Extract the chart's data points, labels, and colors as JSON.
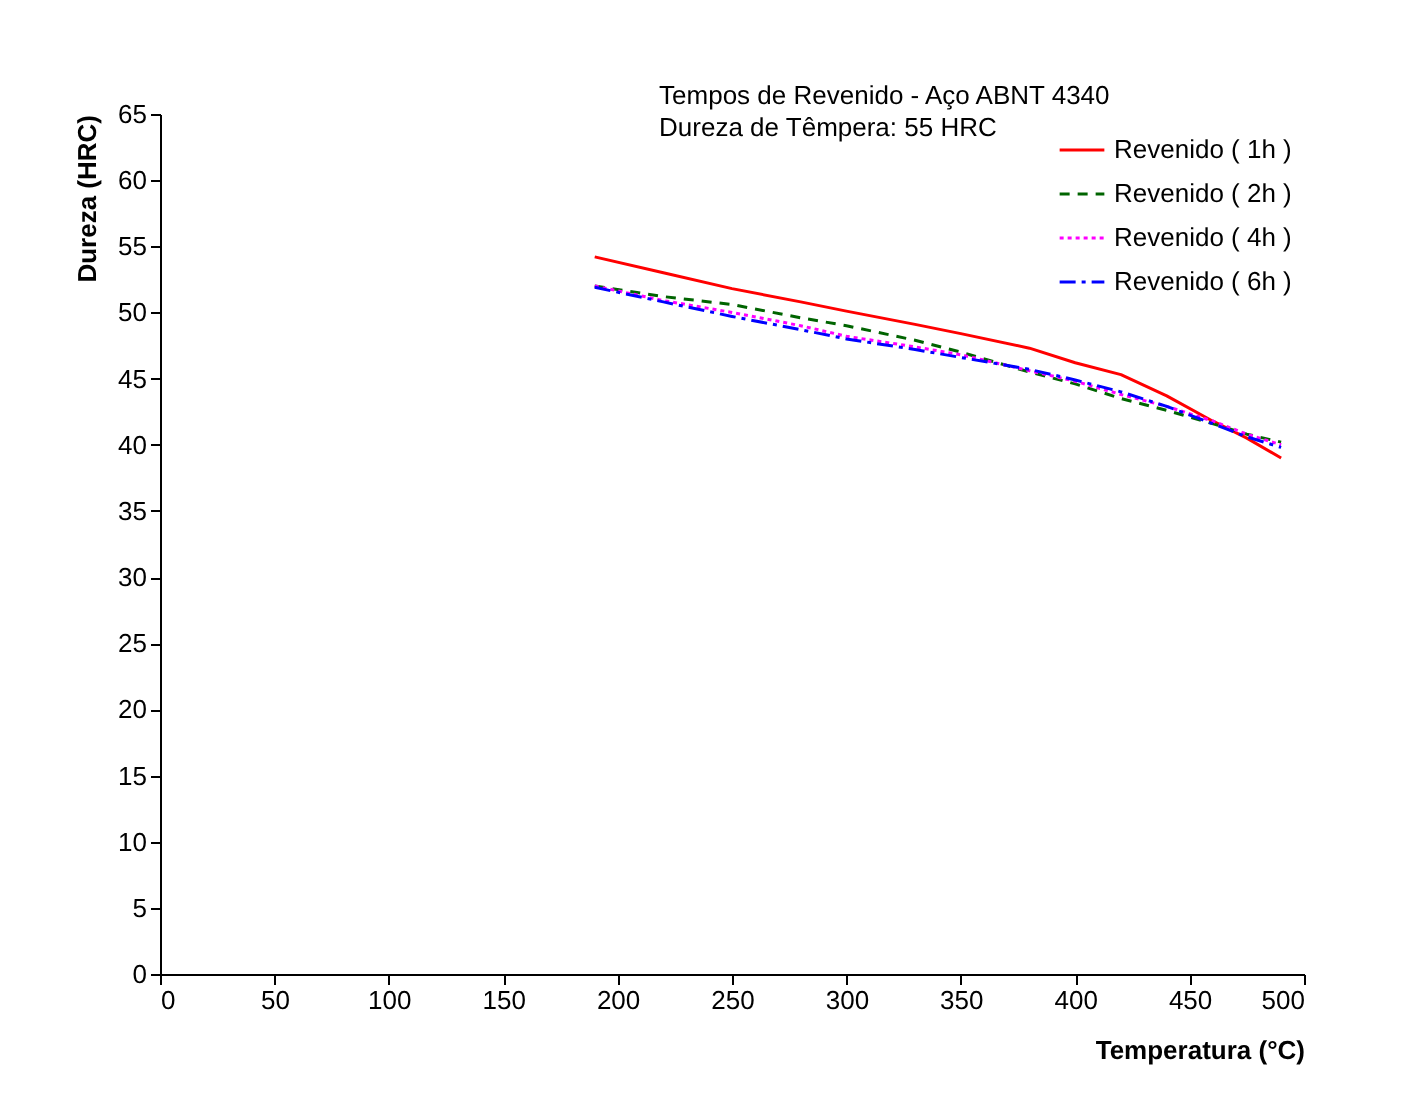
{
  "chart_data": {
    "type": "line",
    "title": "Tempos de Revenido - Aço ABNT 4340",
    "subtitle": "Dureza de Têmpera: 55 HRC",
    "xlabel": "Temperatura (°C)",
    "ylabel": "Dureza (HRC)",
    "x": [
      190,
      220,
      250,
      280,
      300,
      330,
      350,
      380,
      400,
      420,
      440,
      460,
      475,
      490
    ],
    "series": [
      {
        "name": "Revenido ( 1h )",
        "color": "#ff0000",
        "line_style": "solid",
        "values": [
          54.2,
          53,
          51.8,
          50.8,
          50.1,
          49.1,
          48.4,
          47.3,
          46.2,
          45.3,
          43.7,
          41.8,
          40.5,
          39
        ]
      },
      {
        "name": "Revenido ( 2h )",
        "color": "#006400",
        "line_style": "dashed",
        "values": [
          52,
          51.2,
          50.6,
          49.6,
          49,
          47.9,
          47,
          45.5,
          44.6,
          43.5,
          42.6,
          41.6,
          40.8,
          40.2
        ]
      },
      {
        "name": "Revenido ( 4h )",
        "color": "#ff00ff",
        "line_style": "dotted",
        "values": [
          52,
          50.9,
          50,
          49,
          48.2,
          47.4,
          46.8,
          45.6,
          44.8,
          43.8,
          42.9,
          41.8,
          40.8,
          40
        ]
      },
      {
        "name": "Revenido ( 6h )",
        "color": "#0000ff",
        "line_style": "dash-dot",
        "values": [
          51.9,
          50.8,
          49.7,
          48.7,
          48,
          47.2,
          46.6,
          45.7,
          44.9,
          44,
          42.9,
          41.6,
          40.6,
          39.8
        ]
      }
    ],
    "xlim": [
      0,
      500
    ],
    "xticks": [
      0,
      50,
      100,
      150,
      200,
      250,
      300,
      350,
      400,
      450,
      500
    ],
    "ylim": [
      0,
      65
    ],
    "yticks": [
      0,
      5,
      10,
      15,
      20,
      25,
      30,
      35,
      40,
      45,
      50,
      55,
      60,
      65
    ],
    "grid": false,
    "legend": "top right"
  }
}
